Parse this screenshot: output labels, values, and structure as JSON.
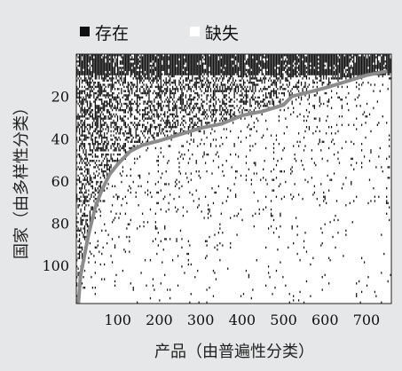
{
  "chart_data": {
    "type": "heatmap",
    "title": "",
    "xlabel": "产品（由普遍性分类）",
    "ylabel": "国家（由多样性分类）",
    "xlim": [
      0,
      760
    ],
    "ylim": [
      0,
      118
    ],
    "y_inverted": true,
    "x_ticks": [
      100,
      200,
      300,
      400,
      500,
      600,
      700
    ],
    "y_ticks": [
      20,
      40,
      60,
      80,
      100
    ],
    "legend": {
      "placement": "top-left",
      "entries": [
        {
          "label": "存在",
          "color": "#111111"
        },
        {
          "label": "缺失",
          "color": "#ffffff"
        }
      ]
    },
    "colors": {
      "present": "#111111",
      "absent": "#ffffff",
      "frontier": "#8c8c8c",
      "background": "#e6e7e8"
    },
    "frontier_curve": {
      "x": [
        5,
        10,
        20,
        30,
        45,
        60,
        80,
        100,
        130,
        160,
        200,
        250,
        300,
        350,
        400,
        450,
        500,
        520,
        560,
        600,
        650,
        700,
        750
      ],
      "y": [
        118,
        105,
        95,
        85,
        73,
        65,
        57,
        52,
        46,
        43,
        41,
        38,
        35,
        33,
        29,
        27,
        24,
        20,
        18,
        16,
        13,
        10,
        8
      ]
    },
    "density_model": {
      "top_band_rows": 10,
      "top_band_density": 0.9,
      "above_frontier_density": 0.55,
      "below_frontier_density": 0.07
    }
  }
}
